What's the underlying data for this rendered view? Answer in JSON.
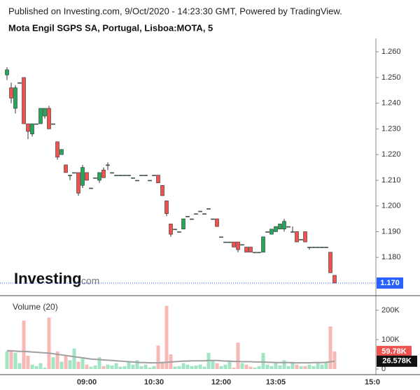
{
  "chart_data": {
    "type": "candlestick",
    "published": "Published on Investing.com, 9/Oct/2020 - 14:23:30 GMT, Powered by TradingView.",
    "title": "Mota Engil SGPS SA, Portugal, Lisboa:MOTA, 5",
    "logo_name": "Investing",
    "logo_suffix": ".com",
    "categories": [
      null,
      null,
      null,
      null,
      null,
      null,
      null,
      null,
      null,
      null,
      null,
      null,
      null,
      null,
      null,
      null,
      null,
      null,
      null,
      "09:00",
      null,
      null,
      null,
      null,
      null,
      null,
      null,
      null,
      null,
      null,
      null,
      null,
      null,
      null,
      null,
      "10:30",
      null,
      null,
      null,
      null,
      null,
      null,
      null,
      null,
      null,
      null,
      null,
      null,
      null,
      null,
      null,
      "12:00",
      null,
      null,
      null,
      null,
      null,
      null,
      null,
      null,
      null,
      null,
      null,
      null,
      "13:05",
      null,
      null,
      null,
      null,
      null,
      null,
      null,
      null,
      null,
      null,
      null,
      null,
      null,
      null,
      null,
      null,
      null,
      null,
      null,
      null,
      null,
      null,
      "15:0"
    ],
    "open": [
      1.251,
      1.246,
      1.238,
      1.248,
      1.25,
      1.232,
      1.228,
      1.232,
      1.232,
      1.235,
      1.238,
      1.232,
      1.225,
      1.22,
      1.216,
      1.212,
      1.213,
      1.213,
      1.208,
      1.213,
      1.207,
      1.211,
      1.21,
      1.214,
      1.216,
      1.213,
      1.212,
      1.212,
      1.212,
      1.212,
      1.211,
      1.21,
      1.212,
      1.212,
      1.21,
      1.212,
      1.212,
      1.208,
      1.202,
      1.193,
      1.191,
      1.19,
      1.191,
      1.196,
      1.195,
      1.197,
      1.198,
      1.197,
      1.199,
      1.195,
      1.195,
      1.188,
      1.186,
      1.186,
      1.186,
      1.186,
      1.185,
      1.184,
      1.184,
      1.182,
      1.182,
      1.182,
      1.19,
      1.189,
      1.19,
      1.191,
      1.191,
      1.192,
      1.19,
      1.19,
      1.187,
      1.19,
      1.184,
      1.184,
      1.184,
      1.184,
      1.184,
      1.182,
      1.173,
      null,
      null,
      null,
      null,
      null,
      null,
      null,
      null,
      null
    ],
    "high": [
      1.254,
      1.248,
      1.247,
      1.248,
      1.25,
      1.232,
      1.232,
      1.232,
      1.238,
      1.238,
      1.239,
      1.232,
      1.225,
      1.222,
      1.216,
      1.212,
      1.213,
      1.213,
      1.216,
      1.213,
      1.207,
      1.211,
      1.213,
      1.215,
      1.217,
      1.213,
      1.212,
      1.212,
      1.212,
      1.212,
      1.211,
      1.21,
      1.212,
      1.212,
      1.21,
      1.212,
      1.212,
      1.208,
      1.202,
      1.193,
      1.191,
      1.19,
      1.195,
      1.196,
      1.195,
      1.197,
      1.198,
      1.197,
      1.199,
      1.195,
      1.195,
      1.188,
      1.186,
      1.186,
      1.186,
      1.186,
      1.185,
      1.184,
      1.184,
      1.182,
      1.182,
      1.188,
      1.19,
      1.191,
      1.192,
      1.193,
      1.195,
      1.192,
      1.192,
      1.19,
      1.187,
      1.19,
      1.184,
      1.184,
      1.184,
      1.184,
      1.184,
      1.182,
      1.173,
      null,
      null,
      null,
      null,
      null,
      null,
      null,
      null,
      null
    ],
    "low": [
      1.249,
      1.24,
      1.236,
      1.248,
      1.232,
      1.226,
      1.227,
      1.232,
      1.232,
      1.234,
      1.23,
      1.232,
      1.218,
      1.22,
      1.213,
      1.21,
      1.213,
      1.204,
      1.207,
      1.21,
      1.207,
      1.211,
      1.209,
      1.211,
      1.214,
      1.213,
      1.212,
      1.212,
      1.212,
      1.212,
      1.211,
      1.21,
      1.212,
      1.212,
      1.21,
      1.212,
      1.209,
      1.204,
      1.196,
      1.188,
      1.191,
      1.19,
      1.191,
      1.196,
      1.195,
      1.197,
      1.198,
      1.197,
      1.199,
      1.195,
      1.192,
      1.188,
      1.186,
      1.186,
      1.184,
      1.182,
      1.185,
      1.182,
      1.182,
      1.182,
      1.182,
      1.182,
      1.19,
      1.189,
      1.19,
      1.191,
      1.19,
      1.192,
      1.19,
      1.186,
      1.187,
      1.186,
      1.183,
      1.184,
      1.184,
      1.184,
      1.184,
      1.174,
      1.17,
      null,
      null,
      null,
      null,
      null,
      null,
      null,
      null,
      null
    ],
    "close": [
      1.253,
      1.242,
      1.246,
      1.248,
      1.232,
      1.229,
      1.232,
      1.232,
      1.238,
      1.238,
      1.23,
      1.232,
      1.219,
      1.222,
      1.213,
      1.212,
      1.213,
      1.205,
      1.215,
      1.21,
      1.207,
      1.211,
      1.213,
      1.211,
      1.216,
      1.213,
      1.212,
      1.212,
      1.212,
      1.212,
      1.211,
      1.21,
      1.212,
      1.212,
      1.21,
      1.212,
      1.209,
      1.204,
      1.197,
      1.189,
      1.191,
      1.19,
      1.195,
      1.196,
      1.195,
      1.197,
      1.198,
      1.197,
      1.199,
      1.195,
      1.192,
      1.188,
      1.186,
      1.186,
      1.184,
      1.183,
      1.185,
      1.182,
      1.182,
      1.182,
      1.182,
      1.188,
      1.19,
      1.191,
      1.192,
      1.193,
      1.194,
      1.192,
      1.19,
      1.186,
      1.187,
      1.186,
      1.184,
      1.184,
      1.184,
      1.184,
      1.184,
      1.174,
      1.17,
      null,
      null,
      null,
      null,
      null,
      null,
      null,
      null,
      null
    ],
    "up_color": "#26a65b",
    "down_color": "#ef5350",
    "ylim": [
      1.1651,
      1.2652
    ],
    "yticks": [
      {
        "value": 1.17,
        "label": "1.170"
      },
      {
        "value": 1.18,
        "label": "1.180"
      },
      {
        "value": 1.19,
        "label": "1.190"
      },
      {
        "value": 1.2,
        "label": "1.200"
      },
      {
        "value": 1.21,
        "label": "1.210"
      },
      {
        "value": 1.22,
        "label": "1.220"
      },
      {
        "value": 1.23,
        "label": "1.230"
      },
      {
        "value": 1.24,
        "label": "1.240"
      },
      {
        "value": 1.25,
        "label": "1.250"
      },
      {
        "value": 1.26,
        "label": "1.260"
      }
    ],
    "last_price": {
      "value": 1.17,
      "label": "1.170"
    },
    "last_price_color": "#2962ff",
    "volume": {
      "title": "Volume (20)",
      "values": [
        60000,
        60000,
        55000,
        20000,
        165000,
        45000,
        15000,
        10000,
        20000,
        5000,
        175000,
        40000,
        60000,
        25000,
        45000,
        30000,
        70000,
        25000,
        35000,
        15000,
        8000,
        12000,
        40000,
        10000,
        15000,
        12000,
        20000,
        8000,
        10000,
        25000,
        15000,
        30000,
        10000,
        15000,
        5000,
        10000,
        80000,
        25000,
        215000,
        50000,
        8000,
        10000,
        20000,
        15000,
        10000,
        12000,
        15000,
        8000,
        55000,
        30000,
        20000,
        10000,
        15000,
        25000,
        5000,
        90000,
        20000,
        15000,
        8000,
        5000,
        10000,
        55000,
        15000,
        10000,
        20000,
        12000,
        30000,
        10000,
        25000,
        15000,
        10000,
        10000,
        15000,
        10000,
        20000,
        15000,
        25000,
        145000,
        59780,
        null,
        null,
        null,
        null,
        null,
        null,
        null,
        null,
        null
      ],
      "ma_values": [
        62000,
        62000,
        61000,
        60000,
        60000,
        59000,
        58000,
        57000,
        56000,
        55000,
        54000,
        52000,
        50000,
        48000,
        46000,
        44000,
        42000,
        40000,
        38000,
        36000,
        34000,
        33000,
        32000,
        31000,
        30000,
        29000,
        28000,
        27000,
        26000,
        25000,
        24000,
        23000,
        22000,
        22000,
        21000,
        21000,
        21000,
        22000,
        23000,
        24000,
        25000,
        26000,
        27000,
        27000,
        28000,
        28000,
        28000,
        28000,
        29000,
        29000,
        29000,
        28000,
        27000,
        27000,
        26000,
        26000,
        25000,
        25000,
        25000,
        24000,
        24000,
        24000,
        23000,
        23000,
        22000,
        22000,
        22000,
        22000,
        21000,
        21000,
        21000,
        21000,
        21000,
        22000,
        22000,
        22000,
        23000,
        25000,
        26578,
        null,
        null,
        null,
        null,
        null,
        null,
        null,
        null,
        null
      ],
      "last_label": "59.78K",
      "ma_last_label": "26.578K",
      "up_color": "#a3e4c4",
      "down_color": "#f8b9b6",
      "ma_color": "#a0a0a0",
      "ylim": [
        0,
        233000
      ],
      "yticks": [
        {
          "value": 0,
          "label": "0"
        },
        {
          "value": 100000,
          "label": "100K"
        },
        {
          "value": 200000,
          "label": "200K"
        }
      ]
    }
  }
}
